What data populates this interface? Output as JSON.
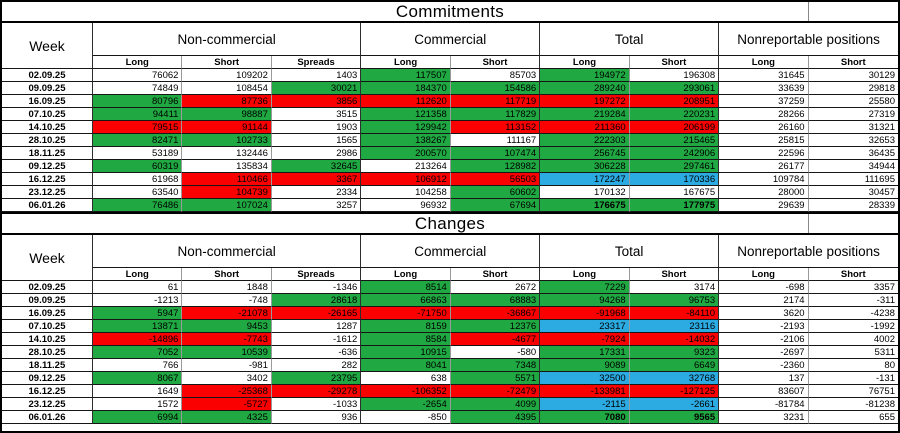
{
  "colors": {
    "green": "#20A842",
    "red": "#FB0000",
    "blue": "#2BABE2",
    "white": "#FFFFFF",
    "grid_line": "#9A9A9A",
    "row_line": "#161616",
    "border": "#000000"
  },
  "chart_data": [
    {
      "type": "table",
      "key": "commitments",
      "title": "Commitments",
      "week_header": "Week",
      "groups": [
        {
          "label": "Non-commercial",
          "span": 3
        },
        {
          "label": "Commercial",
          "span": 2
        },
        {
          "label": "Total",
          "span": 2
        },
        {
          "label": "Nonreportable positions",
          "span": 2
        }
      ],
      "subheaders": [
        "Long",
        "Short",
        "Spreads",
        "Long",
        "Short",
        "Long",
        "Short",
        "Long",
        "Short"
      ],
      "rows": [
        {
          "week": "02.09.25",
          "cells": [
            [
              "76062",
              "w"
            ],
            [
              "109202",
              "w"
            ],
            [
              "1403",
              "w"
            ],
            [
              "117507",
              "g"
            ],
            [
              "85703",
              "w"
            ],
            [
              "194972",
              "g"
            ],
            [
              "196308",
              "w"
            ],
            [
              "31645",
              "w"
            ],
            [
              "30129",
              "w"
            ]
          ]
        },
        {
          "week": "09.09.25",
          "cells": [
            [
              "74849",
              "w"
            ],
            [
              "108454",
              "w"
            ],
            [
              "30021",
              "g"
            ],
            [
              "184370",
              "g"
            ],
            [
              "154586",
              "g"
            ],
            [
              "289240",
              "g"
            ],
            [
              "293061",
              "g"
            ],
            [
              "33639",
              "w"
            ],
            [
              "29818",
              "w"
            ]
          ]
        },
        {
          "week": "16.09.25",
          "cells": [
            [
              "80796",
              "g"
            ],
            [
              "87736",
              "r"
            ],
            [
              "3856",
              "r"
            ],
            [
              "112620",
              "r"
            ],
            [
              "117719",
              "r"
            ],
            [
              "197272",
              "r"
            ],
            [
              "208951",
              "r"
            ],
            [
              "37259",
              "w"
            ],
            [
              "25580",
              "w"
            ]
          ]
        },
        {
          "week": "07.10.25",
          "cells": [
            [
              "94411",
              "g"
            ],
            [
              "98887",
              "g"
            ],
            [
              "3515",
              "w"
            ],
            [
              "121358",
              "g"
            ],
            [
              "117829",
              "g"
            ],
            [
              "219284",
              "g"
            ],
            [
              "220231",
              "g"
            ],
            [
              "28266",
              "w"
            ],
            [
              "27319",
              "w"
            ]
          ]
        },
        {
          "week": "14.10.25",
          "cells": [
            [
              "79515",
              "r"
            ],
            [
              "91144",
              "r"
            ],
            [
              "1903",
              "w"
            ],
            [
              "129942",
              "g"
            ],
            [
              "113152",
              "r"
            ],
            [
              "211360",
              "r"
            ],
            [
              "206199",
              "r"
            ],
            [
              "26160",
              "w"
            ],
            [
              "31321",
              "w"
            ]
          ]
        },
        {
          "week": "28.10.25",
          "cells": [
            [
              "82471",
              "g"
            ],
            [
              "102733",
              "g"
            ],
            [
              "1565",
              "w"
            ],
            [
              "138267",
              "g"
            ],
            [
              "111167",
              "w"
            ],
            [
              "222303",
              "g"
            ],
            [
              "215465",
              "g"
            ],
            [
              "25815",
              "w"
            ],
            [
              "32653",
              "w"
            ]
          ]
        },
        {
          "week": "18.11.25",
          "cells": [
            [
              "53189",
              "w"
            ],
            [
              "132446",
              "w"
            ],
            [
              "2986",
              "w"
            ],
            [
              "200570",
              "g"
            ],
            [
              "107474",
              "g"
            ],
            [
              "256745",
              "g"
            ],
            [
              "242906",
              "g"
            ],
            [
              "22596",
              "w"
            ],
            [
              "36435",
              "w"
            ]
          ]
        },
        {
          "week": "09.12.25",
          "cells": [
            [
              "60319",
              "g"
            ],
            [
              "135834",
              "w"
            ],
            [
              "32645",
              "g"
            ],
            [
              "213264",
              "w"
            ],
            [
              "128982",
              "g"
            ],
            [
              "306228",
              "g"
            ],
            [
              "297461",
              "g"
            ],
            [
              "26177",
              "w"
            ],
            [
              "34944",
              "w"
            ]
          ]
        },
        {
          "week": "16.12.25",
          "cells": [
            [
              "61968",
              "w"
            ],
            [
              "110466",
              "r"
            ],
            [
              "3367",
              "r"
            ],
            [
              "106912",
              "r"
            ],
            [
              "56503",
              "r"
            ],
            [
              "172247",
              "b"
            ],
            [
              "170336",
              "b"
            ],
            [
              "109784",
              "w"
            ],
            [
              "111695",
              "w"
            ]
          ]
        },
        {
          "week": "23.12.25",
          "cells": [
            [
              "63540",
              "w"
            ],
            [
              "104739",
              "r"
            ],
            [
              "2334",
              "w"
            ],
            [
              "104258",
              "w"
            ],
            [
              "60602",
              "g"
            ],
            [
              "170132",
              "w"
            ],
            [
              "167675",
              "w"
            ],
            [
              "28000",
              "w"
            ],
            [
              "30457",
              "w"
            ]
          ]
        },
        {
          "week": "06.01.26",
          "cells": [
            [
              "76486",
              "g"
            ],
            [
              "107024",
              "g"
            ],
            [
              "3257",
              "w"
            ],
            [
              "96932",
              "w"
            ],
            [
              "67694",
              "g"
            ],
            [
              "176675",
              "g",
              1
            ],
            [
              "177975",
              "g",
              1
            ],
            [
              "29639",
              "w"
            ],
            [
              "28339",
              "w"
            ]
          ]
        }
      ]
    },
    {
      "type": "table",
      "key": "changes",
      "title": "Changes",
      "week_header": "Week",
      "groups": [
        {
          "label": "Non-commercial",
          "span": 3
        },
        {
          "label": "Commercial",
          "span": 2
        },
        {
          "label": "Total",
          "span": 2
        },
        {
          "label": "Nonreportable positions",
          "span": 2
        }
      ],
      "subheaders": [
        "Long",
        "Short",
        "Spreads",
        "Long",
        "Short",
        "Long",
        "Short",
        "Long",
        "Short"
      ],
      "rows": [
        {
          "week": "02.09.25",
          "cells": [
            [
              "61",
              "w"
            ],
            [
              "1848",
              "w"
            ],
            [
              "-1346",
              "w"
            ],
            [
              "8514",
              "g"
            ],
            [
              "2672",
              "w"
            ],
            [
              "7229",
              "g"
            ],
            [
              "3174",
              "w"
            ],
            [
              "-698",
              "w"
            ],
            [
              "3357",
              "w"
            ]
          ]
        },
        {
          "week": "09.09.25",
          "cells": [
            [
              "-1213",
              "w"
            ],
            [
              "-748",
              "w"
            ],
            [
              "28618",
              "g"
            ],
            [
              "66863",
              "g"
            ],
            [
              "68883",
              "g"
            ],
            [
              "94268",
              "g"
            ],
            [
              "96753",
              "g"
            ],
            [
              "2174",
              "w"
            ],
            [
              "-311",
              "w"
            ]
          ]
        },
        {
          "week": "16.09.25",
          "cells": [
            [
              "5947",
              "g"
            ],
            [
              "-21078",
              "r"
            ],
            [
              "-26165",
              "r"
            ],
            [
              "-71750",
              "r"
            ],
            [
              "-36867",
              "r"
            ],
            [
              "-91968",
              "r"
            ],
            [
              "-84110",
              "r"
            ],
            [
              "3620",
              "w"
            ],
            [
              "-4238",
              "w"
            ]
          ]
        },
        {
          "week": "07.10.25",
          "cells": [
            [
              "13871",
              "g"
            ],
            [
              "9453",
              "g"
            ],
            [
              "1287",
              "w"
            ],
            [
              "8159",
              "g"
            ],
            [
              "12376",
              "g"
            ],
            [
              "23317",
              "b"
            ],
            [
              "23116",
              "b"
            ],
            [
              "-2193",
              "w"
            ],
            [
              "-1992",
              "w"
            ]
          ]
        },
        {
          "week": "14.10.25",
          "cells": [
            [
              "-14896",
              "r"
            ],
            [
              "-7743",
              "r"
            ],
            [
              "-1612",
              "w"
            ],
            [
              "8584",
              "g"
            ],
            [
              "-4677",
              "r"
            ],
            [
              "-7924",
              "r"
            ],
            [
              "-14032",
              "r"
            ],
            [
              "-2106",
              "w"
            ],
            [
              "4002",
              "w"
            ]
          ]
        },
        {
          "week": "28.10.25",
          "cells": [
            [
              "7052",
              "g"
            ],
            [
              "10539",
              "g"
            ],
            [
              "-636",
              "w"
            ],
            [
              "10915",
              "g"
            ],
            [
              "-580",
              "w"
            ],
            [
              "17331",
              "g"
            ],
            [
              "9323",
              "g"
            ],
            [
              "-2697",
              "w"
            ],
            [
              "5311",
              "w"
            ]
          ]
        },
        {
          "week": "18.11.25",
          "cells": [
            [
              "766",
              "w"
            ],
            [
              "-981",
              "w"
            ],
            [
              "282",
              "w"
            ],
            [
              "8041",
              "g"
            ],
            [
              "7348",
              "g"
            ],
            [
              "9089",
              "g"
            ],
            [
              "6649",
              "g"
            ],
            [
              "-2360",
              "w"
            ],
            [
              "80",
              "w"
            ]
          ]
        },
        {
          "week": "09.12.25",
          "cells": [
            [
              "8067",
              "g"
            ],
            [
              "3402",
              "w"
            ],
            [
              "23795",
              "g"
            ],
            [
              "638",
              "w"
            ],
            [
              "5571",
              "g"
            ],
            [
              "32500",
              "b"
            ],
            [
              "32768",
              "b"
            ],
            [
              "137",
              "w"
            ],
            [
              "-131",
              "w"
            ]
          ]
        },
        {
          "week": "16.12.25",
          "cells": [
            [
              "1649",
              "w"
            ],
            [
              "-25368",
              "r"
            ],
            [
              "-29278",
              "r"
            ],
            [
              "-106352",
              "r"
            ],
            [
              "-72479",
              "r"
            ],
            [
              "-133981",
              "r"
            ],
            [
              "-127125",
              "r"
            ],
            [
              "83607",
              "w"
            ],
            [
              "76751",
              "w"
            ]
          ]
        },
        {
          "week": "23.12.25",
          "cells": [
            [
              "1572",
              "w"
            ],
            [
              "-5727",
              "r"
            ],
            [
              "-1033",
              "w"
            ],
            [
              "-2654",
              "g"
            ],
            [
              "4099",
              "g"
            ],
            [
              "-2115",
              "b"
            ],
            [
              "-2661",
              "b"
            ],
            [
              "-81784",
              "w"
            ],
            [
              "-81238",
              "w"
            ]
          ]
        },
        {
          "week": "06.01.26",
          "cells": [
            [
              "6994",
              "g"
            ],
            [
              "4325",
              "g"
            ],
            [
              "936",
              "w"
            ],
            [
              "-850",
              "w"
            ],
            [
              "4395",
              "g"
            ],
            [
              "7080",
              "g",
              1
            ],
            [
              "9565",
              "g",
              1
            ],
            [
              "3231",
              "w"
            ],
            [
              "655",
              "w"
            ]
          ]
        }
      ]
    }
  ]
}
